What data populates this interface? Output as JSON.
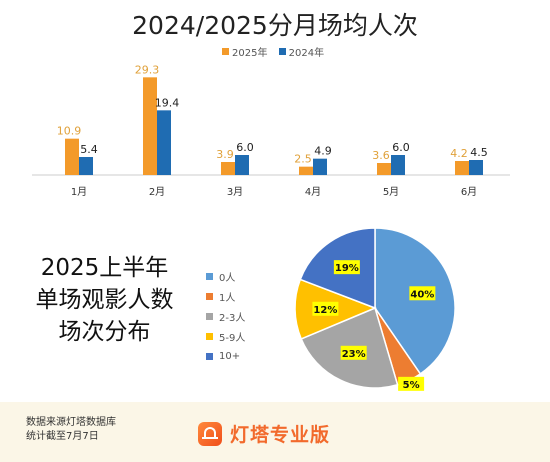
{
  "title": "2024/2025分月场均人次",
  "chart_data": [
    {
      "type": "bar",
      "title": "2024/2025分月场均人次",
      "categories": [
        "1月",
        "2月",
        "3月",
        "4月",
        "5月",
        "6月"
      ],
      "series": [
        {
          "name": "2025年",
          "values": [
            10.9,
            29.3,
            3.9,
            2.5,
            3.6,
            4.2
          ],
          "color": "#f39a2a"
        },
        {
          "name": "2024年",
          "values": [
            5.4,
            19.4,
            6.0,
            4.9,
            6.0,
            4.5
          ],
          "color": "#1f6cb2"
        }
      ],
      "value_labels": [
        [
          "10.9",
          "29.3",
          "3.9",
          "2.5",
          "3.6",
          "4.2"
        ],
        [
          "5.4",
          "19.4",
          "6.0",
          "4.9",
          "6.0",
          "4.5"
        ]
      ],
      "ylim": [
        0,
        30
      ],
      "legend_position": "top-center",
      "grid": false
    },
    {
      "type": "pie",
      "title": "2025上半年单场观影人数场次分布",
      "title_lines": [
        "2025上半年",
        "单场观影人数",
        "场次分布"
      ],
      "categories": [
        "0人",
        "1人",
        "2-3人",
        "5-9人",
        "10+"
      ],
      "values": [
        40,
        5,
        23,
        12,
        19
      ],
      "labels": [
        "40%",
        "5%",
        "23%",
        "12%",
        "19%"
      ],
      "colors": [
        "#5b9bd5",
        "#ed7d31",
        "#a5a5a5",
        "#ffc000",
        "#4472c4"
      ],
      "legend_position": "left"
    }
  ],
  "footer": {
    "source_line1": "数据来源灯塔数据库",
    "source_line2": "统计截至7月7日",
    "brand": "灯塔专业版"
  }
}
